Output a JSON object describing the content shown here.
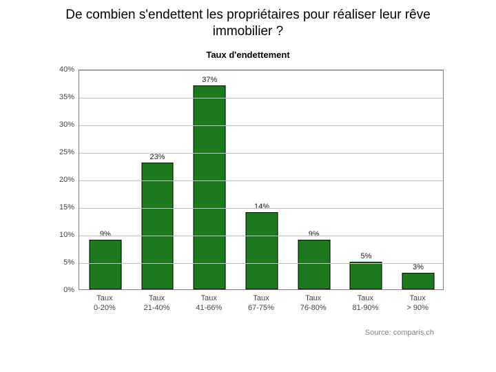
{
  "page_title": "De combien s'endettent les propriétaires pour réaliser leur rêve immobilier ?",
  "chart": {
    "type": "bar",
    "title": "Taux d'endettement",
    "categories_line1": [
      "Taux",
      "Taux",
      "Taux",
      "Taux",
      "Taux",
      "Taux",
      "Taux"
    ],
    "categories_line2": [
      "0-20%",
      "21-40%",
      "41-66%",
      "67-75%",
      "76-80%",
      "81-90%",
      "> 90%"
    ],
    "values": [
      9,
      23,
      37,
      14,
      9,
      5,
      3
    ],
    "value_labels": [
      "9%",
      "23%",
      "37%",
      "14%",
      "9%",
      "5%",
      "3%"
    ],
    "bar_color": "#1e7a1e",
    "bar_border": "#000000",
    "ylim": [
      0,
      40
    ],
    "ytick_step": 5,
    "ytick_labels": [
      "0%",
      "5%",
      "10%",
      "15%",
      "20%",
      "25%",
      "30%",
      "35%",
      "40%"
    ],
    "grid_color": "#c0c0c0",
    "border_color": "#808080",
    "background_color": "#ffffff",
    "bar_width_ratio": 0.62,
    "label_fontsize": 11,
    "source": "Source: comparis.ch"
  }
}
